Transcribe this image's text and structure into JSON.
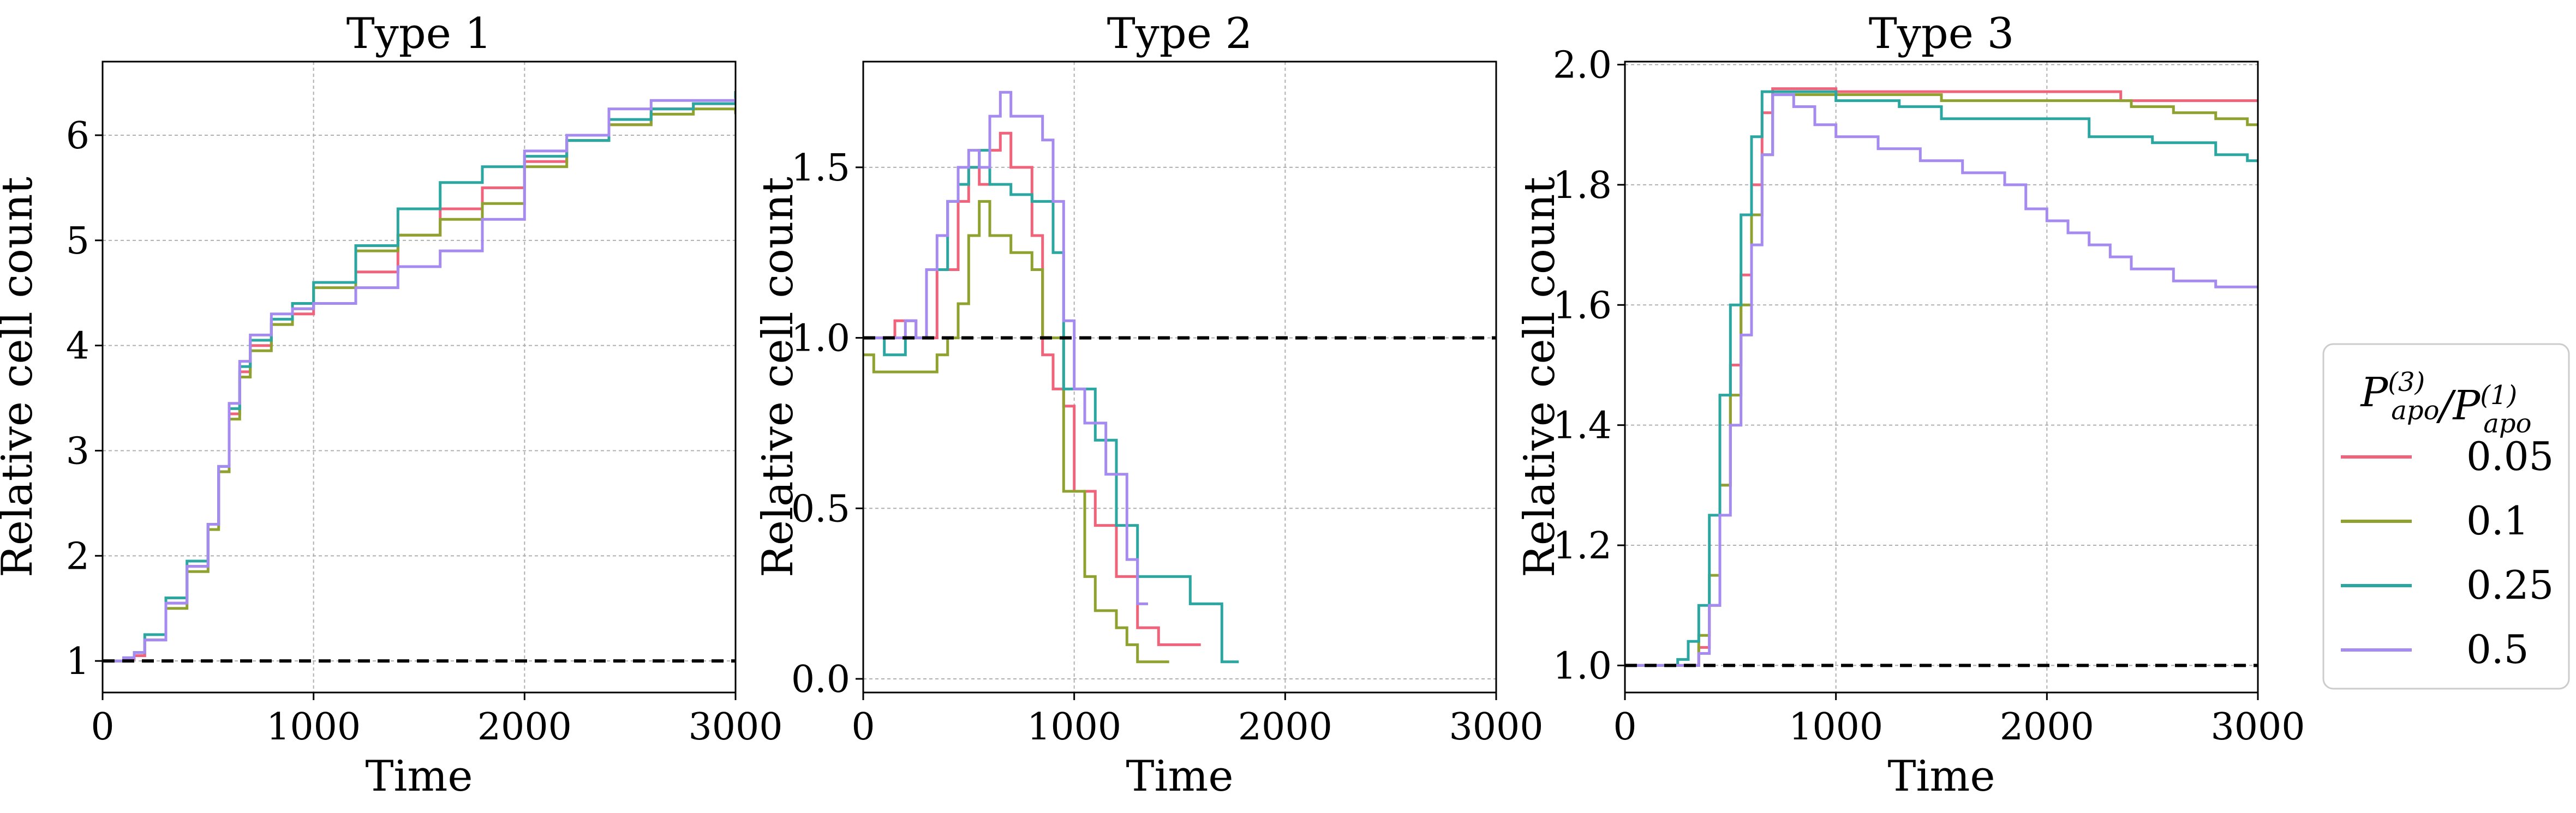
{
  "colors": {
    "series": [
      "#f0637b",
      "#8fa12f",
      "#2ba6a0",
      "#a58af0"
    ],
    "reference_line": "#000000",
    "grid": "#b0b0b0",
    "legend_border": "#cccccc"
  },
  "legend": {
    "title": "P_apo^(3)/P_apo^(1)",
    "placement": "right",
    "entries": [
      "0.05",
      "0.1",
      "0.25",
      "0.5"
    ]
  },
  "chart_data": [
    {
      "type": "line",
      "step": true,
      "title": "Type 1",
      "xlabel": "Time",
      "ylabel": "Relative cell count",
      "xlim": [
        0,
        3000
      ],
      "ylim": [
        0.7,
        6.7
      ],
      "xticks": [
        0,
        1000,
        2000,
        3000
      ],
      "xtick_labels": [
        "0",
        "1000",
        "2000",
        "3000"
      ],
      "yticks": [
        1,
        2,
        3,
        4,
        5,
        6
      ],
      "ytick_labels": [
        "1",
        "2",
        "3",
        "4",
        "5",
        "6"
      ],
      "grid": true,
      "reference_y": 1.0,
      "series": [
        {
          "name": "0.05",
          "x": [
            0,
            100,
            150,
            200,
            300,
            400,
            500,
            550,
            600,
            650,
            700,
            800,
            900,
            1000,
            1200,
            1400,
            1600,
            1800,
            2000,
            2200,
            2400,
            2600,
            2800,
            3000
          ],
          "y": [
            1.0,
            1.02,
            1.05,
            1.2,
            1.55,
            1.9,
            2.3,
            2.8,
            3.35,
            3.75,
            4.0,
            4.2,
            4.3,
            4.4,
            4.7,
            5.05,
            5.3,
            5.5,
            5.75,
            5.95,
            6.1,
            6.25,
            6.3,
            6.3
          ]
        },
        {
          "name": "0.1",
          "x": [
            0,
            100,
            150,
            200,
            300,
            400,
            500,
            550,
            600,
            650,
            700,
            800,
            900,
            1000,
            1200,
            1400,
            1600,
            1800,
            2000,
            2200,
            2400,
            2600,
            2800,
            3000
          ],
          "y": [
            1.0,
            1.03,
            1.08,
            1.2,
            1.5,
            1.85,
            2.25,
            2.8,
            3.3,
            3.7,
            3.95,
            4.2,
            4.35,
            4.55,
            4.9,
            5.05,
            5.2,
            5.35,
            5.7,
            5.95,
            6.1,
            6.2,
            6.25,
            6.2
          ]
        },
        {
          "name": "0.25",
          "x": [
            0,
            100,
            150,
            200,
            300,
            400,
            500,
            550,
            600,
            650,
            700,
            800,
            900,
            1000,
            1200,
            1400,
            1600,
            1800,
            2000,
            2200,
            2400,
            2600,
            2800,
            3000
          ],
          "y": [
            1.0,
            1.03,
            1.08,
            1.25,
            1.6,
            1.95,
            2.3,
            2.85,
            3.4,
            3.8,
            4.05,
            4.25,
            4.4,
            4.6,
            4.95,
            5.3,
            5.55,
            5.7,
            5.8,
            5.95,
            6.15,
            6.25,
            6.3,
            6.42
          ]
        },
        {
          "name": "0.5",
          "x": [
            0,
            100,
            150,
            200,
            300,
            400,
            500,
            550,
            600,
            650,
            700,
            800,
            900,
            1000,
            1200,
            1400,
            1600,
            1800,
            2000,
            2200,
            2400,
            2600,
            2800,
            3000
          ],
          "y": [
            1.0,
            1.03,
            1.08,
            1.2,
            1.55,
            1.9,
            2.3,
            2.85,
            3.45,
            3.85,
            4.1,
            4.3,
            4.35,
            4.4,
            4.55,
            4.75,
            4.9,
            5.2,
            5.85,
            6.0,
            6.25,
            6.33,
            6.33,
            6.35
          ]
        }
      ]
    },
    {
      "type": "line",
      "step": true,
      "title": "Type 2",
      "xlabel": "Time",
      "ylabel": "Relative cell count",
      "xlim": [
        0,
        3000
      ],
      "ylim": [
        -0.04,
        1.81
      ],
      "xticks": [
        0,
        1000,
        2000,
        3000
      ],
      "xtick_labels": [
        "0",
        "1000",
        "2000",
        "3000"
      ],
      "yticks": [
        0.0,
        0.5,
        1.0,
        1.5
      ],
      "ytick_labels": [
        "0.0",
        "0.5",
        "1.0",
        "1.5"
      ],
      "grid": true,
      "reference_y": 1.0,
      "series": [
        {
          "name": "0.05",
          "x": [
            0,
            150,
            250,
            350,
            450,
            500,
            550,
            600,
            650,
            700,
            800,
            850,
            900,
            950,
            1000,
            1100,
            1200,
            1300,
            1400,
            1600
          ],
          "y": [
            1.0,
            1.05,
            1.0,
            1.2,
            1.4,
            1.5,
            1.45,
            1.55,
            1.6,
            1.5,
            1.3,
            0.95,
            0.85,
            0.8,
            0.55,
            0.45,
            0.3,
            0.15,
            0.1,
            0.1
          ]
        },
        {
          "name": "0.1",
          "x": [
            0,
            50,
            350,
            400,
            450,
            500,
            550,
            600,
            700,
            800,
            850,
            950,
            1000,
            1050,
            1100,
            1200,
            1250,
            1300,
            1450
          ],
          "y": [
            0.95,
            0.9,
            0.95,
            1.0,
            1.1,
            1.3,
            1.4,
            1.3,
            1.25,
            1.2,
            1.0,
            0.55,
            0.55,
            0.3,
            0.2,
            0.15,
            0.1,
            0.05,
            0.05
          ]
        },
        {
          "name": "0.25",
          "x": [
            0,
            100,
            200,
            300,
            400,
            450,
            500,
            550,
            600,
            700,
            800,
            900,
            950,
            1000,
            1100,
            1200,
            1300,
            1550,
            1700,
            1780
          ],
          "y": [
            1.0,
            0.95,
            1.0,
            1.2,
            1.4,
            1.45,
            1.5,
            1.55,
            1.45,
            1.42,
            1.4,
            1.25,
            0.85,
            0.85,
            0.7,
            0.45,
            0.3,
            0.22,
            0.05,
            0.05
          ]
        },
        {
          "name": "0.5",
          "x": [
            0,
            200,
            250,
            300,
            350,
            400,
            450,
            500,
            550,
            600,
            650,
            700,
            850,
            900,
            950,
            1000,
            1050,
            1150,
            1250,
            1300,
            1350
          ],
          "y": [
            1.0,
            1.05,
            1.0,
            1.2,
            1.3,
            1.4,
            1.5,
            1.55,
            1.5,
            1.65,
            1.72,
            1.65,
            1.58,
            1.4,
            1.05,
            0.85,
            0.75,
            0.6,
            0.35,
            0.22,
            0.22
          ]
        }
      ]
    },
    {
      "type": "line",
      "step": true,
      "title": "Type 3",
      "xlabel": "Time",
      "ylabel": "Relative cell count",
      "xlim": [
        0,
        3000
      ],
      "ylim": [
        0.955,
        2.005
      ],
      "xticks": [
        0,
        1000,
        2000,
        3000
      ],
      "xtick_labels": [
        "0",
        "1000",
        "2000",
        "3000"
      ],
      "yticks": [
        1.0,
        1.2,
        1.4,
        1.6,
        1.8,
        2.0
      ],
      "ytick_labels": [
        "1.0",
        "1.2",
        "1.4",
        "1.6",
        "1.8",
        "2.0"
      ],
      "grid": true,
      "reference_y": 1.0,
      "series": [
        {
          "name": "0.05",
          "x": [
            0,
            300,
            350,
            400,
            450,
            500,
            550,
            600,
            650,
            700,
            1000,
            2200,
            2350,
            3000
          ],
          "y": [
            1.0,
            1.0,
            1.03,
            1.1,
            1.3,
            1.5,
            1.65,
            1.8,
            1.92,
            1.96,
            1.955,
            1.955,
            1.94,
            1.94
          ]
        },
        {
          "name": "0.1",
          "x": [
            0,
            300,
            350,
            400,
            450,
            500,
            550,
            600,
            650,
            700,
            1000,
            1500,
            2000,
            2400,
            2600,
            2800,
            2950,
            3000
          ],
          "y": [
            1.0,
            1.0,
            1.05,
            1.15,
            1.3,
            1.45,
            1.6,
            1.75,
            1.85,
            1.95,
            1.95,
            1.94,
            1.94,
            1.93,
            1.92,
            1.91,
            1.9,
            1.9
          ]
        },
        {
          "name": "0.25",
          "x": [
            0,
            250,
            300,
            350,
            400,
            450,
            500,
            550,
            600,
            650,
            700,
            1000,
            1300,
            1500,
            2000,
            2200,
            2500,
            2800,
            2950,
            3000
          ],
          "y": [
            1.0,
            1.01,
            1.04,
            1.1,
            1.25,
            1.45,
            1.6,
            1.75,
            1.88,
            1.955,
            1.955,
            1.94,
            1.93,
            1.91,
            1.91,
            1.88,
            1.87,
            1.85,
            1.84,
            1.84
          ]
        },
        {
          "name": "0.5",
          "x": [
            0,
            300,
            350,
            400,
            450,
            500,
            550,
            600,
            650,
            700,
            800,
            900,
            1000,
            1200,
            1400,
            1600,
            1800,
            1900,
            2000,
            2100,
            2200,
            2300,
            2400,
            2600,
            2800,
            3000
          ],
          "y": [
            1.0,
            1.0,
            1.02,
            1.1,
            1.25,
            1.4,
            1.55,
            1.7,
            1.85,
            1.95,
            1.93,
            1.9,
            1.88,
            1.86,
            1.84,
            1.82,
            1.8,
            1.76,
            1.74,
            1.72,
            1.7,
            1.68,
            1.66,
            1.64,
            1.63,
            1.63
          ]
        }
      ]
    }
  ]
}
